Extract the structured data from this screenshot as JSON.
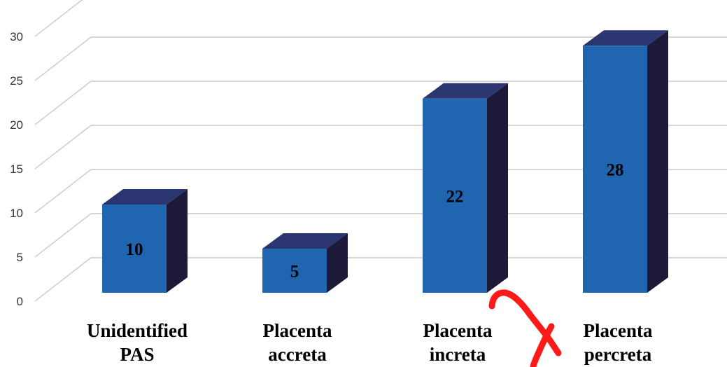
{
  "chart_data": {
    "type": "bar",
    "categories": [
      "Unidentified PAS",
      "Placenta accreta",
      "Placenta increta",
      "Placenta percreta"
    ],
    "category_lines": [
      [
        "Unidentified",
        "PAS"
      ],
      [
        "Placenta",
        "accreta"
      ],
      [
        "Placenta",
        "increta"
      ],
      [
        "Placenta",
        "percreta"
      ]
    ],
    "values": [
      10,
      5,
      22,
      28
    ],
    "data_labels": [
      "10",
      "5",
      "22",
      "28"
    ],
    "ylim": [
      0,
      35
    ],
    "yticks": [
      0,
      5,
      10,
      15,
      20,
      25,
      30
    ],
    "ytick_labels": [
      "0",
      "5",
      "10",
      "15",
      "20",
      "25",
      "30"
    ],
    "grid": true,
    "three_d": true,
    "colors": {
      "bar_front": "#1f65b0",
      "bar_top": "#2b3670",
      "bar_side": "#1c1a38",
      "grid": "#c8c8c8",
      "annotation_stroke": "#ff1a1a"
    }
  }
}
